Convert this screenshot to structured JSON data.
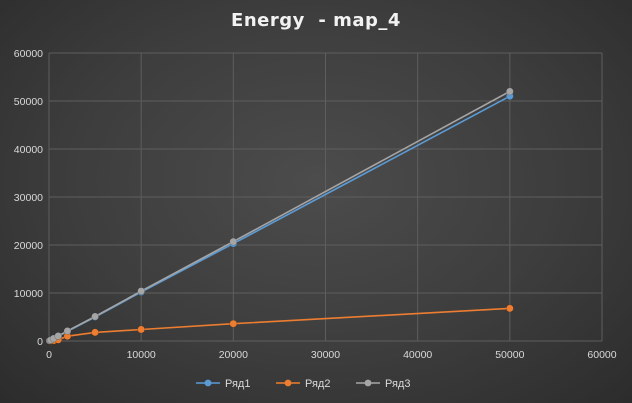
{
  "chart_data": {
    "type": "line",
    "title": "Energy  - map_4",
    "xlabel": "",
    "ylabel": "",
    "xlim": [
      0,
      60000
    ],
    "ylim": [
      0,
      60000
    ],
    "x_ticks": [
      0,
      10000,
      20000,
      30000,
      40000,
      50000,
      60000
    ],
    "y_ticks": [
      0,
      10000,
      20000,
      30000,
      40000,
      50000,
      60000
    ],
    "grid": true,
    "legend_position": "bottom",
    "series": [
      {
        "name": "Ряд1",
        "color": "#5b9bd5",
        "x": [
          50,
          100,
          200,
          500,
          1000,
          2000,
          5000,
          10000,
          20000,
          50000
        ],
        "y": [
          50,
          100,
          200,
          500,
          1000,
          2000,
          5000,
          10200,
          20300,
          51000
        ]
      },
      {
        "name": "Ряд2",
        "color": "#ed7d31",
        "x": [
          50,
          100,
          200,
          500,
          1000,
          2000,
          5000,
          10000,
          20000,
          50000
        ],
        "y": [
          10,
          20,
          40,
          100,
          250,
          1000,
          1800,
          2400,
          3600,
          6800
        ]
      },
      {
        "name": "Ряд3",
        "color": "#a5a5a5",
        "x": [
          50,
          100,
          200,
          500,
          1000,
          2000,
          5000,
          10000,
          20000,
          50000
        ],
        "y": [
          60,
          110,
          220,
          520,
          1050,
          2100,
          5100,
          10400,
          20700,
          52000
        ]
      }
    ]
  }
}
